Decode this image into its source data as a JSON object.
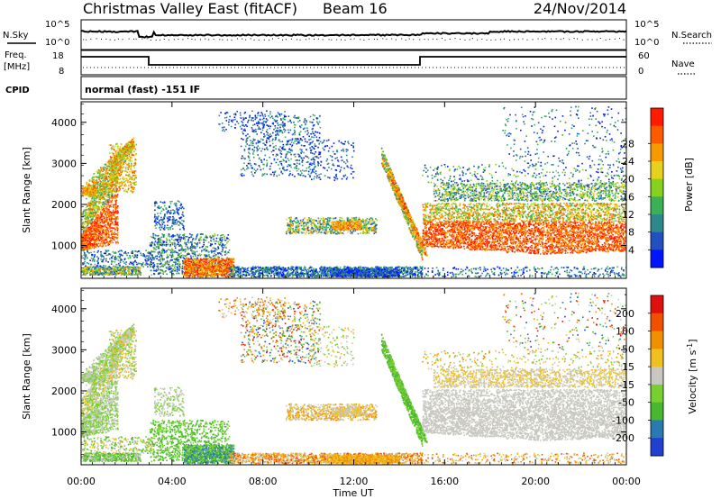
{
  "header": {
    "title": "Christmas Valley East (fitACF)",
    "beam": "Beam 16",
    "date": "24/Nov/2014"
  },
  "params": {
    "nsky_label": "N.Sky",
    "nsearch_label": "N.Search",
    "freq_label_1": "Freq.",
    "freq_label_2": "[MHz]",
    "nave_label": "Nave",
    "cpid_label": "CPID",
    "mode": "normal (fast) -151 IF",
    "noise_ticks": [
      "10^5",
      "10^0"
    ],
    "freq_ticks": [
      "18",
      "8"
    ],
    "nave_ticks": [
      "60",
      "0"
    ]
  },
  "chart_data": [
    {
      "type": "heatmap",
      "name": "power",
      "ylabel": "Slant Range [km]",
      "xlabel": "Time UT",
      "x_ticks": [
        "00:00",
        "04:00",
        "08:00",
        "12:00",
        "16:00",
        "20:00",
        "00:00"
      ],
      "y_ticks": [
        1000,
        2000,
        3000,
        4000
      ],
      "xlim": [
        0,
        24
      ],
      "ylim": [
        200,
        4500
      ],
      "colorbar": {
        "label": "Power [dB]",
        "ticks": [
          "4",
          "8",
          "12",
          "16",
          "20",
          "24",
          "28"
        ],
        "colors": [
          "#0015ff",
          "#2250c0",
          "#2e8a8a",
          "#3bb055",
          "#86d01e",
          "#e6d21e",
          "#f79a00",
          "#ff5a00",
          "#ff1a00"
        ]
      }
    },
    {
      "type": "heatmap",
      "name": "velocity",
      "ylabel": "Slant Range [km]",
      "xlabel": "Time UT",
      "x_ticks": [
        "00:00",
        "04:00",
        "08:00",
        "12:00",
        "16:00",
        "20:00",
        "00:00"
      ],
      "y_ticks": [
        1000,
        2000,
        3000,
        4000
      ],
      "xlim": [
        0,
        24
      ],
      "ylim": [
        200,
        4500
      ],
      "colorbar": {
        "label_main": "Velocity [m s",
        "label_sup": "-1",
        "label_end": "]",
        "ticks": [
          "200",
          "100",
          "50",
          "15",
          "-15",
          "-50",
          "-100",
          "-200"
        ],
        "colors": [
          "#2040d0",
          "#2a7ab0",
          "#48b830",
          "#78d030",
          "#c8c8c0",
          "#f0c020",
          "#f09000",
          "#f05000",
          "#e01010"
        ]
      }
    }
  ]
}
